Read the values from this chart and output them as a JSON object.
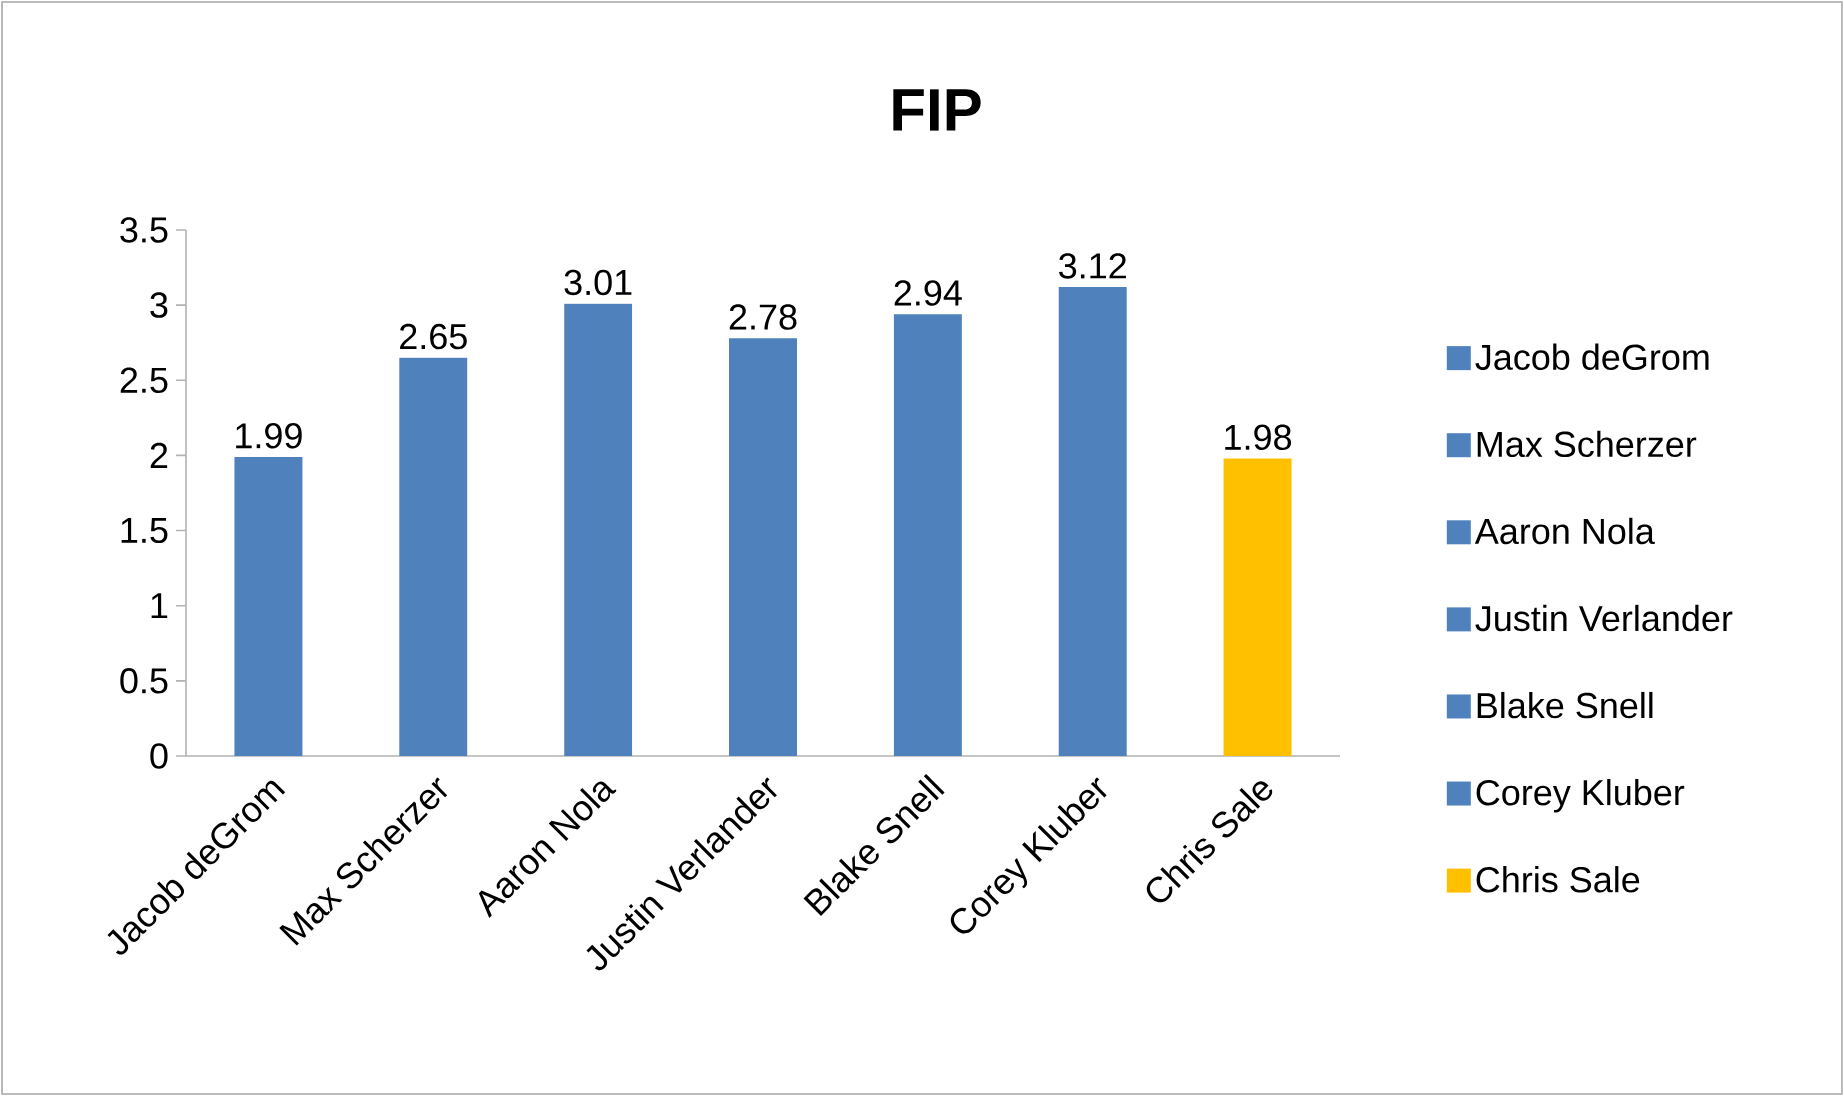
{
  "chart_data": {
    "type": "bar",
    "title": "FIP",
    "categories": [
      "Jacob deGrom",
      "Max Scherzer",
      "Aaron Nola",
      "Justin Verlander",
      "Blake Snell",
      "Corey Kluber",
      "Chris Sale"
    ],
    "series": [
      {
        "name": "Jacob deGrom",
        "color": "#4f81bd",
        "values": [
          1.99,
          null,
          null,
          null,
          null,
          null,
          null
        ]
      },
      {
        "name": "Max Scherzer",
        "color": "#4f81bd",
        "values": [
          null,
          2.65,
          null,
          null,
          null,
          null,
          null
        ]
      },
      {
        "name": "Aaron Nola",
        "color": "#4f81bd",
        "values": [
          null,
          null,
          3.01,
          null,
          null,
          null,
          null
        ]
      },
      {
        "name": "Justin Verlander",
        "color": "#4f81bd",
        "values": [
          null,
          null,
          null,
          2.78,
          null,
          null,
          null
        ]
      },
      {
        "name": "Blake Snell",
        "color": "#4f81bd",
        "values": [
          null,
          null,
          null,
          null,
          2.94,
          null,
          null
        ]
      },
      {
        "name": "Corey Kluber",
        "color": "#4f81bd",
        "values": [
          null,
          null,
          null,
          null,
          null,
          3.12,
          null
        ]
      },
      {
        "name": "Chris Sale",
        "color": "#ffc000",
        "values": [
          null,
          null,
          null,
          null,
          null,
          null,
          1.98
        ]
      }
    ],
    "ylim": [
      0,
      3.5
    ],
    "yticks": [
      0,
      0.5,
      1,
      1.5,
      2,
      2.5,
      3,
      3.5
    ],
    "data_labels": true,
    "legend": "right",
    "grid": false
  }
}
